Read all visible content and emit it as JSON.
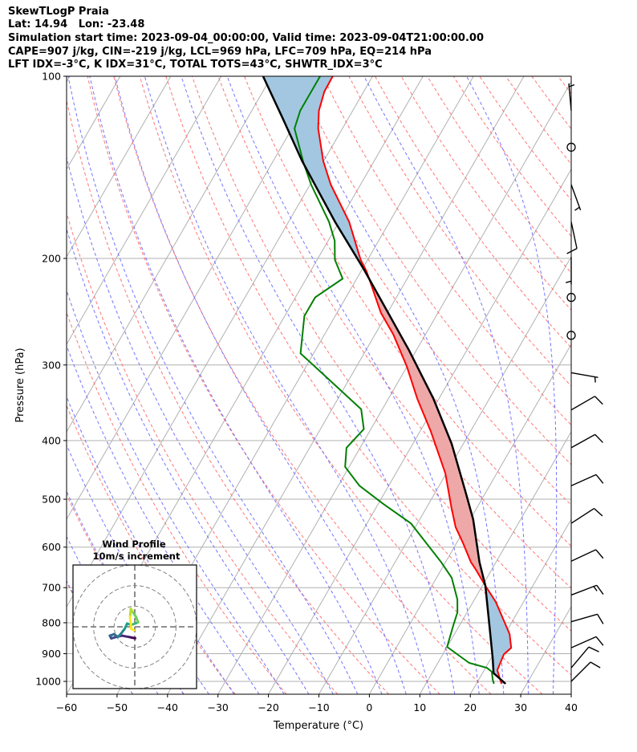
{
  "header": {
    "title": "SkewTLogP Praia",
    "location": "Lat: 14.94   Lon: -23.48",
    "times": "Simulation start time: 2023-09-04_00:00:00, Valid time: 2023-09-04T21:00:00.00",
    "indices1": "CAPE=907 j/kg, CIN=-219 j/kg, LCL=969 hPa, LFC=709 hPa, EQ=214 hPa",
    "indices2": "LFT IDX=-3°C, K IDX=31°C, TOTAL TOTS=43°C, SHWTR_IDX=3°C"
  },
  "chart_data": {
    "type": "skewt",
    "xlabel": "Temperature (°C)",
    "ylabel": "Pressure (hPa)",
    "xlim": [
      -60,
      40
    ],
    "ylim": [
      1050,
      100
    ],
    "skew_deg": 30,
    "xticks": [
      -60,
      -50,
      -40,
      -30,
      -20,
      -10,
      0,
      10,
      20,
      30,
      40
    ],
    "xtick_labels": [
      "−60",
      "−50",
      "−40",
      "−30",
      "−20",
      "−10",
      "0",
      "10",
      "20",
      "30",
      "40"
    ],
    "yticks": [
      100,
      200,
      300,
      400,
      500,
      600,
      700,
      800,
      900,
      1000
    ],
    "ytick_labels": [
      "100",
      "200",
      "300",
      "400",
      "500",
      "600",
      "700",
      "800",
      "900",
      "1000"
    ],
    "grid": true,
    "temperature": {
      "p": [
        100,
        106,
        114,
        122,
        138,
        151,
        174,
        201,
        210,
        246,
        267,
        302,
        341,
        386,
        453,
        517,
        556,
        591,
        635,
        654,
        695,
        739,
        835,
        880,
        902,
        958,
        988,
        1009
      ],
      "T": [
        -77.9,
        -77.8,
        -76.7,
        -74.8,
        -70.1,
        -65.9,
        -58.0,
        -51.4,
        -48.9,
        -41.3,
        -36.4,
        -30.0,
        -24.3,
        -17.9,
        -10.2,
        -5.0,
        -2.0,
        1.3,
        5.0,
        6.9,
        10.6,
        14.5,
        20.9,
        22.8,
        22.1,
        22.6,
        24.0,
        25.0
      ]
    },
    "dewpoint": {
      "p": [
        100,
        114,
        122,
        139,
        151,
        174,
        187,
        201,
        216,
        232,
        249,
        287,
        308,
        355,
        383,
        411,
        442,
        475,
        508,
        548,
        635,
        674,
        732,
        769,
        810,
        877,
        932,
        950,
        964,
        994,
        1009
      ],
      "Td": [
        -80.4,
        -80.4,
        -79.5,
        -73.8,
        -69.8,
        -62.0,
        -58.7,
        -56.5,
        -52.8,
        -56.1,
        -56.1,
        -52.6,
        -46.5,
        -34.2,
        -31.4,
        -32.7,
        -30.8,
        -25.8,
        -19.2,
        -11.3,
        -0.9,
        3.0,
        6.6,
        8.1,
        8.8,
        10.0,
        16.2,
        20.3,
        21.7,
        22.8,
        23.5
      ]
    },
    "parcel": {
      "p": [
        100,
        118,
        138,
        174,
        208,
        241,
        284,
        341,
        405,
        486,
        540,
        635,
        695,
        810,
        915,
        969,
        1009
      ],
      "T": [
        -91.7,
        -82.7,
        -74.3,
        -60.8,
        -49.8,
        -41.1,
        -31.4,
        -21.1,
        -12.3,
        -4.1,
        0.6,
        6.7,
        10.6,
        16.0,
        20.3,
        22.2,
        25.8
      ]
    },
    "shading": {
      "lfc_hpa": 709,
      "eq_hpa": 214
    },
    "dry_adiabats_theta_c": [
      -50,
      -40,
      -30,
      -20,
      -10,
      0,
      10,
      20,
      30,
      40,
      50,
      60,
      70,
      80,
      90,
      100,
      110,
      120,
      130,
      140,
      150,
      160,
      170,
      180,
      190,
      200
    ],
    "moist_adiabats_t0_c": [
      -50,
      -45,
      -40,
      -35,
      -30,
      -25,
      -20,
      -15,
      -10,
      -5,
      0,
      5,
      10,
      15,
      20,
      25,
      30,
      35,
      40,
      45
    ],
    "wind_barbs": [
      {
        "p": 114,
        "dir": 355,
        "kt": 5
      },
      {
        "p": 131,
        "calm": true
      },
      {
        "p": 151,
        "dir": 160,
        "kt": 5
      },
      {
        "p": 174,
        "dir": 168,
        "kt": 10
      },
      {
        "p": 199,
        "dir": 180,
        "kt": 5
      },
      {
        "p": 232,
        "calm": true
      },
      {
        "p": 268,
        "calm": true
      },
      {
        "p": 309,
        "dir": 100,
        "kt": 5
      },
      {
        "p": 356,
        "dir": 60,
        "kt": 10
      },
      {
        "p": 411,
        "dir": 61,
        "kt": 10
      },
      {
        "p": 475,
        "dir": 66,
        "kt": 10
      },
      {
        "p": 548,
        "dir": 57,
        "kt": 10
      },
      {
        "p": 633,
        "dir": 65,
        "kt": 10
      },
      {
        "p": 720,
        "dir": 69,
        "kt": 15
      },
      {
        "p": 797,
        "dir": 74,
        "kt": 10
      },
      {
        "p": 880,
        "dir": 66,
        "kt": 10
      },
      {
        "p": 950,
        "dir": 40,
        "kt": 10
      },
      {
        "p": 1000,
        "dir": 45,
        "kt": 10
      }
    ],
    "hodograph": {
      "title": "Wind Profile",
      "subtitle": "10m/s increment",
      "rings_ms": [
        10,
        20,
        30
      ],
      "u": [
        0.2,
        -3.0,
        -6.2,
        -8.8,
        -11.4,
        -12.1,
        -10.1,
        -8.2,
        -6.9,
        -4.9,
        -3.7,
        -1.7,
        0.2,
        1.6,
        0.6,
        -1.1,
        -1.9,
        -2.3,
        -1.7,
        -0.4
      ],
      "v": [
        -5.6,
        -4.9,
        -4.3,
        -4.9,
        -5.6,
        -4.3,
        -3.6,
        -4.9,
        -3.6,
        -1.0,
        1.6,
        0.9,
        1.6,
        2.2,
        4.8,
        7.4,
        8.7,
        4.8,
        -1.0,
        -1.7
      ]
    },
    "colors": {
      "temperature": "#ff0000",
      "dewpoint": "#008000",
      "parcel": "#000000",
      "cape_fill": "#eea8a8",
      "cin_fill": "#a3c7e0",
      "dry_adiabat": "#ff6666",
      "moist_adiabat": "#6666ff",
      "isotherm": "#b0b0b0"
    }
  }
}
